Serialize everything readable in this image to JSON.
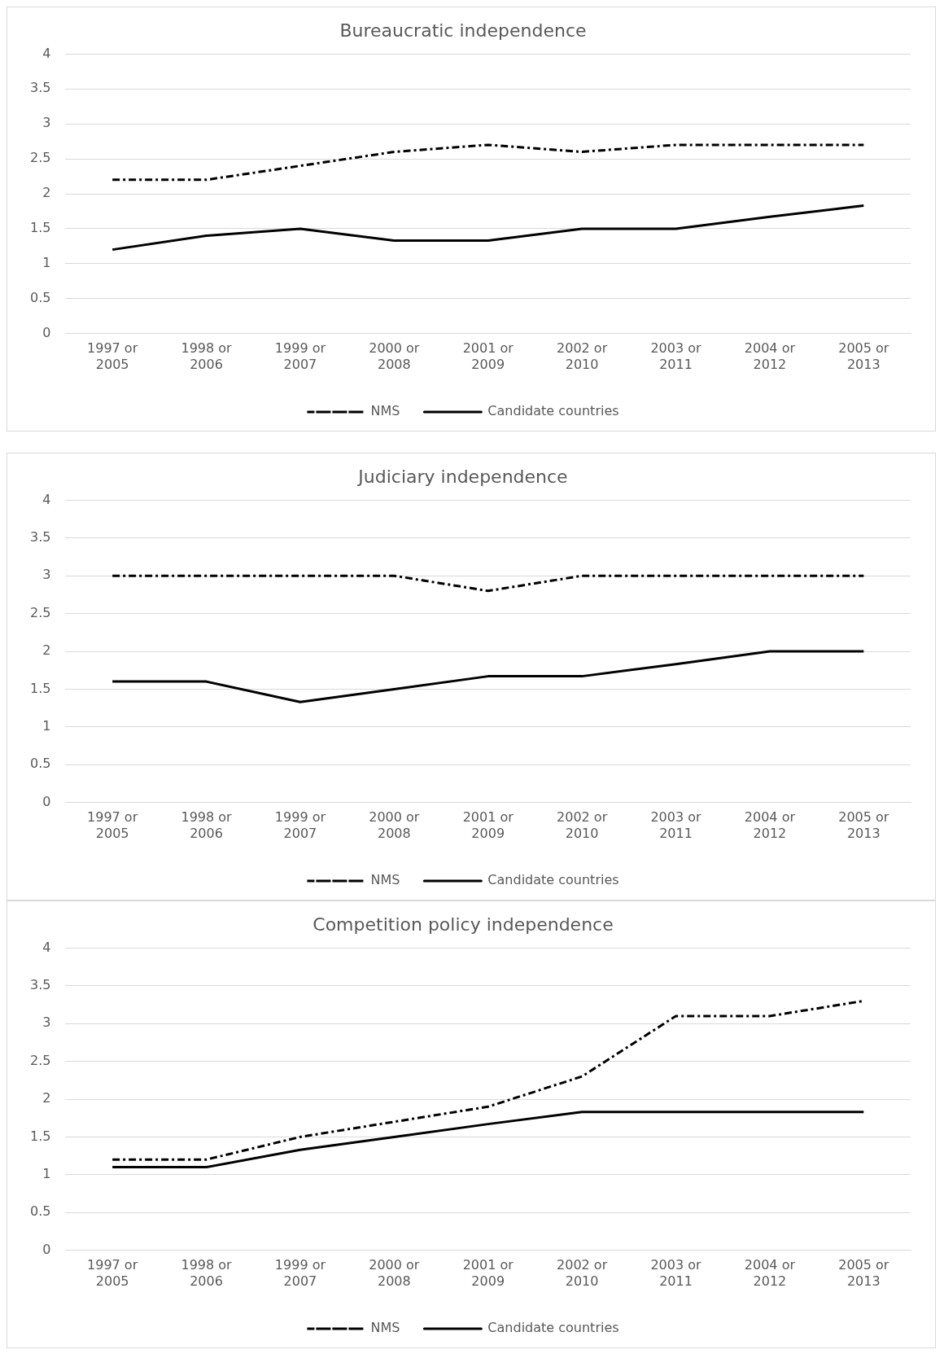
{
  "chart_data": [
    {
      "type": "line",
      "title": "Bureaucratic independence",
      "categories": [
        "1997 or 2005",
        "1998 or 2006",
        "1999 or 2007",
        "2000 or 2008",
        "2001 or 2009",
        "2002 or 2010",
        "2003 or 2011",
        "2004 or 2012",
        "2005 or 2013"
      ],
      "ylim": [
        0,
        4
      ],
      "yticks": [
        0,
        0.5,
        1,
        1.5,
        2,
        2.5,
        3,
        3.5,
        4
      ],
      "grid": "y",
      "legend": "bottom",
      "marker": "none",
      "series": [
        {
          "name": "NMS",
          "color": "#000000",
          "line_style": "dashed",
          "values": [
            2.2,
            2.2,
            2.4,
            2.6,
            2.7,
            2.6,
            2.7,
            2.7,
            2.7
          ]
        },
        {
          "name": "Candidate countries",
          "color": "#000000",
          "line_style": "solid",
          "values": [
            1.2,
            1.4,
            1.5,
            1.33,
            1.33,
            1.5,
            1.5,
            1.67,
            1.83
          ]
        }
      ]
    },
    {
      "type": "line",
      "title": "Judiciary independence",
      "categories": [
        "1997 or 2005",
        "1998 or 2006",
        "1999 or 2007",
        "2000 or 2008",
        "2001 or 2009",
        "2002 or 2010",
        "2003 or 2011",
        "2004 or 2012",
        "2005 or 2013"
      ],
      "ylim": [
        0,
        4
      ],
      "yticks": [
        0,
        0.5,
        1,
        1.5,
        2,
        2.5,
        3,
        3.5,
        4
      ],
      "grid": "y",
      "legend": "bottom",
      "marker": "none",
      "series": [
        {
          "name": "NMS",
          "color": "#000000",
          "line_style": "dashed",
          "values": [
            3,
            3,
            3,
            3,
            2.8,
            3,
            3,
            3,
            3
          ]
        },
        {
          "name": "Candidate countries",
          "color": "#000000",
          "line_style": "solid",
          "values": [
            1.6,
            1.6,
            1.33,
            1.5,
            1.67,
            1.67,
            1.83,
            2,
            2
          ]
        }
      ]
    },
    {
      "type": "line",
      "title": "Competition policy independence",
      "categories": [
        "1997 or 2005",
        "1998 or 2006",
        "1999 or 2007",
        "2000 or 2008",
        "2001 or 2009",
        "2002 or 2010",
        "2003 or 2011",
        "2004 or 2012",
        "2005 or 2013"
      ],
      "ylim": [
        0,
        4
      ],
      "yticks": [
        0,
        0.5,
        1,
        1.5,
        2,
        2.5,
        3,
        3.5,
        4
      ],
      "grid": "y",
      "legend": "bottom",
      "marker": "none",
      "series": [
        {
          "name": "NMS",
          "color": "#000000",
          "line_style": "dashed",
          "values": [
            1.2,
            1.2,
            1.5,
            1.7,
            1.9,
            2.3,
            3.1,
            3.1,
            3.3
          ]
        },
        {
          "name": "Candidate countries",
          "color": "#000000",
          "line_style": "solid",
          "values": [
            1.1,
            1.1,
            1.33,
            1.5,
            1.67,
            1.83,
            1.83,
            1.83,
            1.83
          ]
        }
      ]
    }
  ]
}
